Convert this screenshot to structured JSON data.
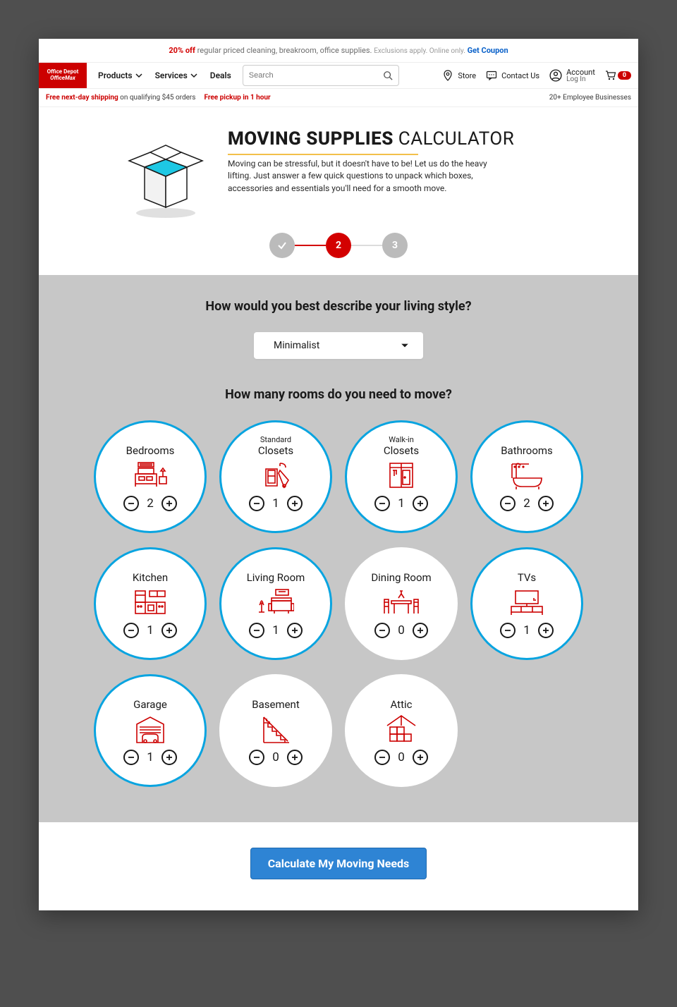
{
  "colors": {
    "page_bg": "#4f4f4f",
    "brand_red": "#cc0000",
    "accent_red": "#d30000",
    "step_grey": "#bbbbbb",
    "panel_bg": "#c7c7c7",
    "circle_stroke": "#08a4e0",
    "cta_bg": "#2e84d4",
    "cta_border": "#1f6ab0",
    "rule_gold": "#f3c04a",
    "link_blue": "#0a61c9"
  },
  "promo": {
    "bold": "20% off",
    "text": "regular priced cleaning, breakroom, office supplies.",
    "small": "Exclusions apply. Online only.",
    "coupon": "Get Coupon"
  },
  "brand": {
    "line1": "Office Depot",
    "line2": "OfficeMax"
  },
  "nav": {
    "products": "Products",
    "services": "Services",
    "deals": "Deals"
  },
  "search": {
    "placeholder": "Search"
  },
  "header": {
    "store": "Store",
    "contact": "Contact Us",
    "account": "Account",
    "login": "Log In",
    "cart_count": "0"
  },
  "subbar": {
    "ship_bold": "Free next-day shipping",
    "ship_rest": " on qualifying $45 orders",
    "pickup": "Free pickup in 1 hour",
    "right": "20+ Employee Businesses"
  },
  "hero": {
    "title_bold": "MOVING SUPPLIES",
    "title_light": " CALCULATOR",
    "desc": "Moving can be stressful, but it doesn't have to be! Let us do the heavy lifting. Just answer a few quick questions to unpack which boxes, accessories and essentials you'll need for a smooth move."
  },
  "stepper": {
    "s1": "✓",
    "s2": "2",
    "s3": "3",
    "current": 2
  },
  "question1": "How would you best describe your living style?",
  "style_select": {
    "selected": "Minimalist"
  },
  "question2": "How many rooms do you need to move?",
  "rooms": [
    {
      "id": "bedrooms",
      "label": "Bedrooms",
      "value": 2,
      "active": true
    },
    {
      "id": "std-closets",
      "small": "Standard",
      "label": "Closets",
      "value": 1,
      "active": true
    },
    {
      "id": "walkin-closets",
      "small": "Walk-in",
      "label": "Closets",
      "value": 1,
      "active": true
    },
    {
      "id": "bathrooms",
      "label": "Bathrooms",
      "value": 2,
      "active": true
    },
    {
      "id": "kitchen",
      "label": "Kitchen",
      "value": 1,
      "active": true
    },
    {
      "id": "living-room",
      "label": "Living Room",
      "value": 1,
      "active": true
    },
    {
      "id": "dining-room",
      "label": "Dining Room",
      "value": 0,
      "active": false
    },
    {
      "id": "tvs",
      "label": "TVs",
      "value": 1,
      "active": true
    },
    {
      "id": "garage",
      "label": "Garage",
      "value": 1,
      "active": true
    },
    {
      "id": "basement",
      "label": "Basement",
      "value": 0,
      "active": false
    },
    {
      "id": "attic",
      "label": "Attic",
      "value": 0,
      "active": false
    }
  ],
  "cta": {
    "label": "Calculate My Moving Needs"
  }
}
